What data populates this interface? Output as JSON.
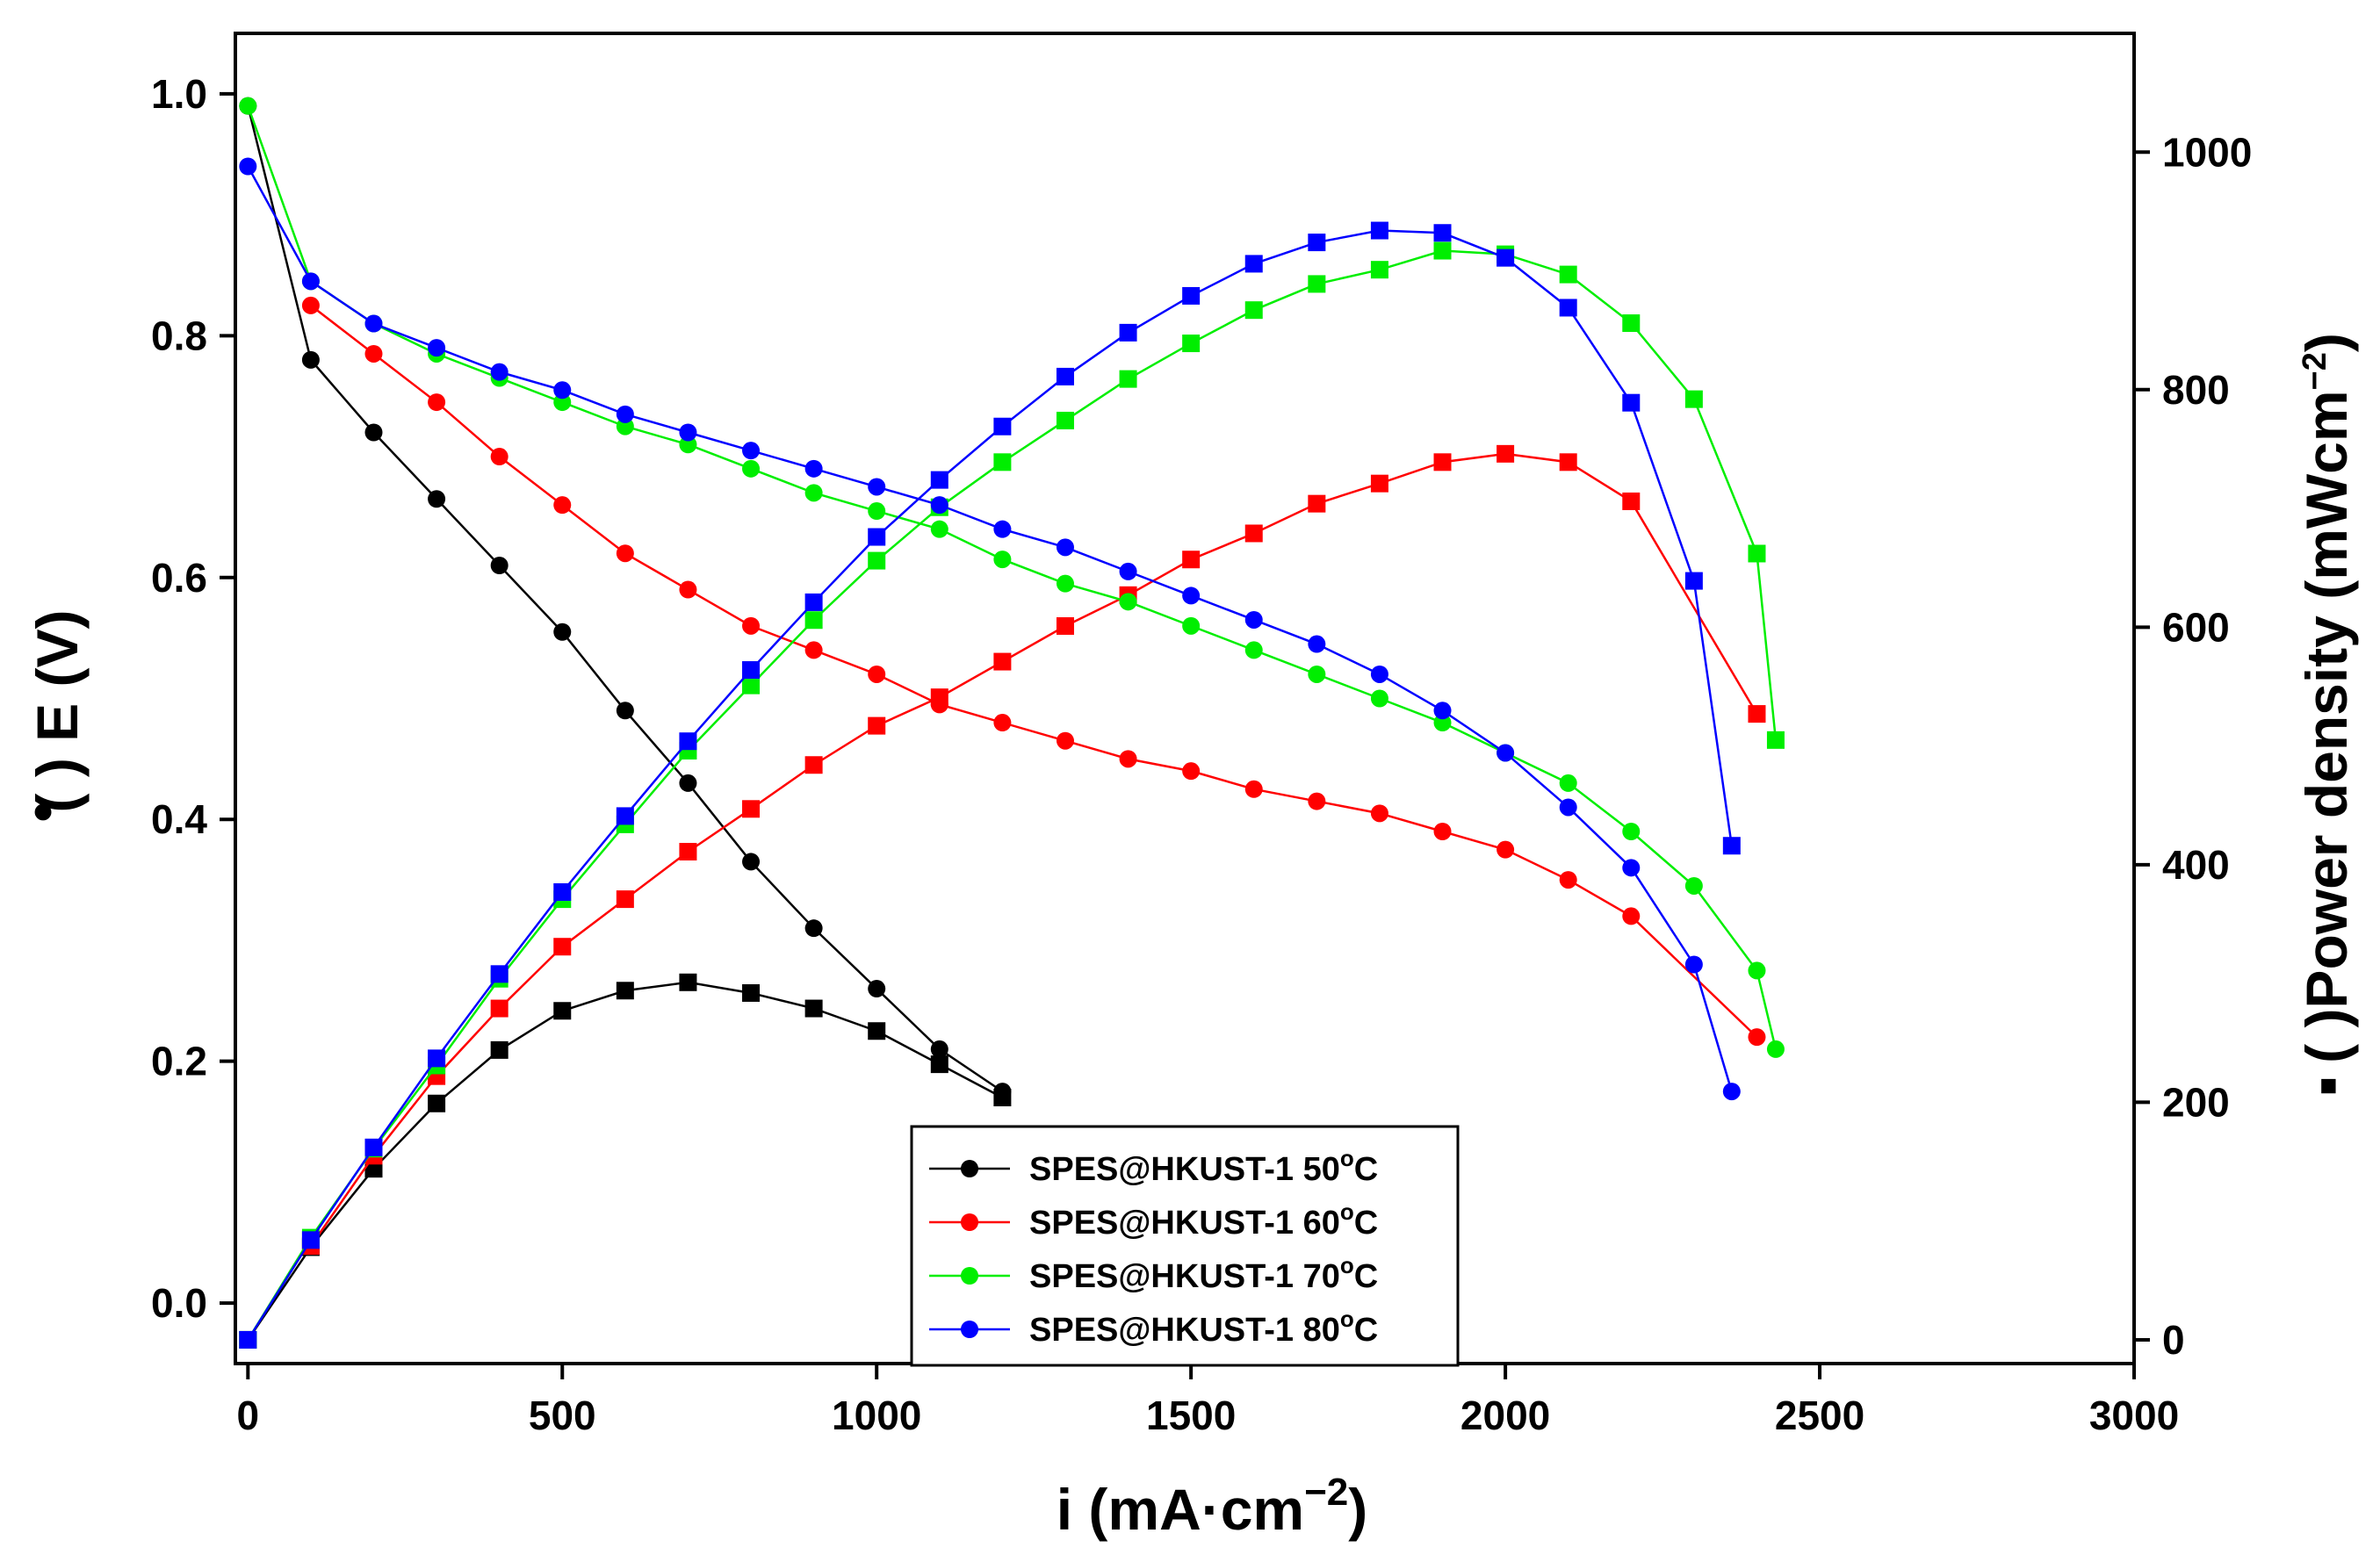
{
  "chart_data": {
    "type": "line",
    "xlabel_main": "i (mA·cm",
    "xlabel_sup": "−2",
    "xlabel_end": ")",
    "ylabel_prefix": "(    ) E (V)",
    "ylabel_marker": "•",
    "y2label_prefix": "(    )Power density (mWcm",
    "y2label_marker": "▪",
    "y2label_sup": "−2",
    "y2label_end": ")",
    "xlim": [
      -20,
      3000
    ],
    "ylim": [
      -0.05,
      1.05
    ],
    "y2lim": [
      -20,
      1100
    ],
    "xticks": [
      0,
      500,
      1000,
      1500,
      2000,
      2500,
      3000
    ],
    "yticks": [
      0.0,
      0.2,
      0.4,
      0.6,
      0.8,
      1.0
    ],
    "y2ticks": [
      0,
      200,
      400,
      600,
      800,
      1000
    ],
    "xtick_labels": [
      "0",
      "500",
      "1000",
      "1500",
      "2000",
      "2500",
      "3000"
    ],
    "ytick_labels": [
      "0.0",
      "0.2",
      "0.4",
      "0.6",
      "0.8",
      "1.0"
    ],
    "y2tick_labels": [
      "0",
      "200",
      "400",
      "600",
      "800",
      "1000"
    ],
    "legend_position": "bottom-center",
    "grid": false,
    "series": [
      {
        "name": "SPES@HKUST-1 50",
        "temp_sup": "o",
        "unit": "C",
        "color": "#000000",
        "voltage": {
          "x": [
            0,
            100,
            200,
            300,
            400,
            500,
            600,
            700,
            800,
            900,
            1000,
            1100,
            1200
          ],
          "y": [
            0.99,
            0.78,
            0.72,
            0.665,
            0.61,
            0.555,
            0.49,
            0.43,
            0.365,
            0.31,
            0.26,
            0.21,
            0.175
          ]
        },
        "power": {
          "x": [
            0,
            100,
            200,
            300,
            400,
            500,
            600,
            700,
            800,
            900,
            1000,
            1100,
            1200
          ],
          "y": [
            0,
            78,
            144,
            199,
            244,
            277,
            294,
            301,
            292,
            279,
            260,
            232,
            204
          ]
        }
      },
      {
        "name": "SPES@HKUST-1 60",
        "temp_sup": "o",
        "unit": "C",
        "color": "#ff0000",
        "voltage": {
          "x": [
            100,
            200,
            300,
            400,
            500,
            600,
            700,
            800,
            900,
            1000,
            1100,
            1200,
            1300,
            1400,
            1500,
            1600,
            1700,
            1800,
            1900,
            2000,
            2100,
            2200,
            2400
          ],
          "y": [
            0.825,
            0.785,
            0.745,
            0.7,
            0.66,
            0.62,
            0.59,
            0.56,
            0.54,
            0.52,
            0.495,
            0.48,
            0.465,
            0.45,
            0.44,
            0.425,
            0.415,
            0.405,
            0.39,
            0.375,
            0.35,
            0.32,
            0.22
          ]
        },
        "power": {
          "x": [
            100,
            200,
            300,
            400,
            500,
            600,
            700,
            800,
            900,
            1000,
            1100,
            1200,
            1300,
            1400,
            1500,
            1600,
            1700,
            1800,
            1900,
            2000,
            2100,
            2200,
            2400
          ],
          "y": [
            79,
            155,
            222,
            279,
            331,
            371,
            411,
            447,
            484,
            517,
            541,
            571,
            601,
            627,
            657,
            679,
            704,
            721,
            739,
            746,
            739,
            706,
            527
          ]
        }
      },
      {
        "name": "SPES@HKUST-1 70",
        "temp_sup": "o",
        "unit": "C",
        "color": "#00ee00",
        "voltage": {
          "x": [
            0,
            100,
            200,
            300,
            400,
            500,
            600,
            700,
            800,
            900,
            1000,
            1100,
            1200,
            1300,
            1400,
            1500,
            1600,
            1700,
            1800,
            1900,
            2000,
            2100,
            2200,
            2300,
            2400,
            2430
          ],
          "y": [
            0.99,
            0.845,
            0.81,
            0.785,
            0.765,
            0.745,
            0.725,
            0.71,
            0.69,
            0.67,
            0.655,
            0.64,
            0.615,
            0.595,
            0.58,
            0.56,
            0.54,
            0.52,
            0.5,
            0.48,
            0.455,
            0.43,
            0.39,
            0.345,
            0.275,
            0.21
          ]
        },
        "power": {
          "x": [
            0,
            100,
            200,
            300,
            400,
            500,
            600,
            700,
            800,
            900,
            1000,
            1100,
            1200,
            1300,
            1400,
            1500,
            1600,
            1700,
            1800,
            1900,
            2000,
            2100,
            2200,
            2300,
            2400,
            2430
          ],
          "y": [
            0,
            86,
            161,
            231,
            304,
            371,
            434,
            496,
            551,
            606,
            656,
            701,
            739,
            774,
            809,
            839,
            867,
            889,
            901,
            917,
            914,
            897,
            856,
            792,
            662,
            505
          ]
        }
      },
      {
        "name": "SPES@HKUST-1 80",
        "temp_sup": "o",
        "unit": "C",
        "color": "#0000ff",
        "voltage": {
          "x": [
            0,
            100,
            200,
            300,
            400,
            500,
            600,
            700,
            800,
            900,
            1000,
            1100,
            1200,
            1300,
            1400,
            1500,
            1600,
            1700,
            1800,
            1900,
            2000,
            2100,
            2200,
            2300,
            2360
          ],
          "y": [
            0.94,
            0.845,
            0.81,
            0.79,
            0.77,
            0.755,
            0.735,
            0.72,
            0.705,
            0.69,
            0.675,
            0.66,
            0.64,
            0.625,
            0.605,
            0.585,
            0.565,
            0.545,
            0.52,
            0.49,
            0.455,
            0.41,
            0.36,
            0.28,
            0.175
          ]
        },
        "power": {
          "x": [
            0,
            100,
            200,
            300,
            400,
            500,
            600,
            700,
            800,
            900,
            1000,
            1100,
            1200,
            1300,
            1400,
            1500,
            1600,
            1700,
            1800,
            1900,
            2000,
            2100,
            2200,
            2300,
            2360
          ],
          "y": [
            0,
            84,
            162,
            237,
            308,
            377,
            441,
            504,
            564,
            621,
            676,
            724,
            769,
            811,
            848,
            879,
            906,
            924,
            934,
            932,
            911,
            869,
            789,
            639,
            416
          ]
        }
      }
    ]
  }
}
